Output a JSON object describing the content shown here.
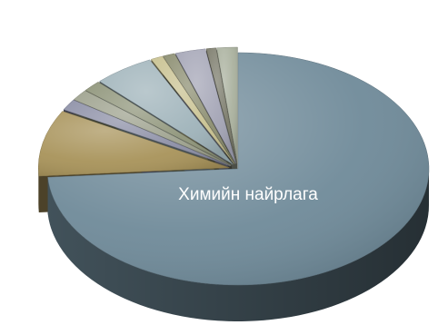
{
  "chart_data": {
    "type": "pie",
    "title": "",
    "slices": [
      {
        "label": "Химийн найрлага",
        "value": 72,
        "color": "#6f8a99"
      },
      {
        "label": "",
        "value": 9,
        "color": "#a8935a"
      },
      {
        "label": "",
        "value": 1.5,
        "color": "#8c8fa6"
      },
      {
        "label": "",
        "value": 1.5,
        "color": "#9da18d"
      },
      {
        "label": "",
        "value": 1.5,
        "color": "#8e9479"
      },
      {
        "label": "",
        "value": 5,
        "color": "#9fb3ba"
      },
      {
        "label": "",
        "value": 1,
        "color": "#c8c190"
      },
      {
        "label": "",
        "value": 1,
        "color": "#8b8d70"
      },
      {
        "label": "",
        "value": 2.5,
        "color": "#a3a4b5"
      },
      {
        "label": "",
        "value": 0.8,
        "color": "#7a7a6a"
      },
      {
        "label": "",
        "value": 1.7,
        "color": "#a9b09d"
      }
    ]
  }
}
